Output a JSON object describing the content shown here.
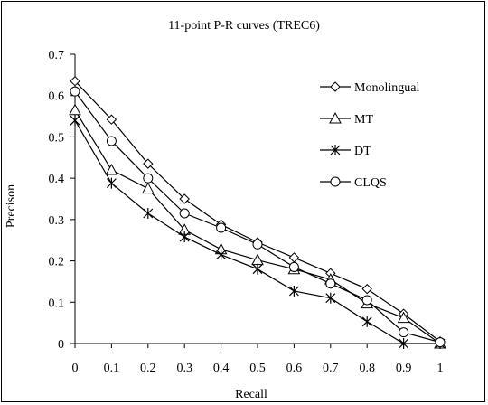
{
  "chart_data": {
    "type": "line",
    "title": "11-point P-R curves (TREC6)",
    "xlabel": "Recall",
    "ylabel": "Precison",
    "xlim": [
      0,
      1
    ],
    "ylim": [
      0,
      0.7
    ],
    "x_ticks": [
      "0",
      "0.1",
      "0.2",
      "0.3",
      "0.4",
      "0.5",
      "0.6",
      "0.7",
      "0.8",
      "0.9",
      "1"
    ],
    "y_ticks": [
      "0",
      "0.1",
      "0.2",
      "0.3",
      "0.4",
      "0.5",
      "0.6",
      "0.7"
    ],
    "x": [
      0,
      0.1,
      0.2,
      0.3,
      0.4,
      0.5,
      0.6,
      0.7,
      0.8,
      0.9,
      1.0
    ],
    "grid": false,
    "legend_position": "right",
    "series": [
      {
        "name": "Monolingual",
        "marker": "diamond",
        "values": [
          0.635,
          0.542,
          0.435,
          0.35,
          0.288,
          0.245,
          0.208,
          0.17,
          0.132,
          0.072,
          0.005
        ]
      },
      {
        "name": "MT",
        "marker": "triangle",
        "values": [
          0.565,
          0.42,
          0.375,
          0.275,
          0.228,
          0.202,
          0.18,
          0.155,
          0.097,
          0.062,
          0.0
        ]
      },
      {
        "name": "DT",
        "marker": "asterisk",
        "values": [
          0.54,
          0.388,
          0.315,
          0.258,
          0.215,
          0.18,
          0.127,
          0.11,
          0.053,
          0.0,
          0.0
        ]
      },
      {
        "name": "CLQS",
        "marker": "circle",
        "values": [
          0.61,
          0.49,
          0.4,
          0.315,
          0.28,
          0.24,
          0.185,
          0.145,
          0.105,
          0.027,
          0.003
        ]
      }
    ]
  }
}
